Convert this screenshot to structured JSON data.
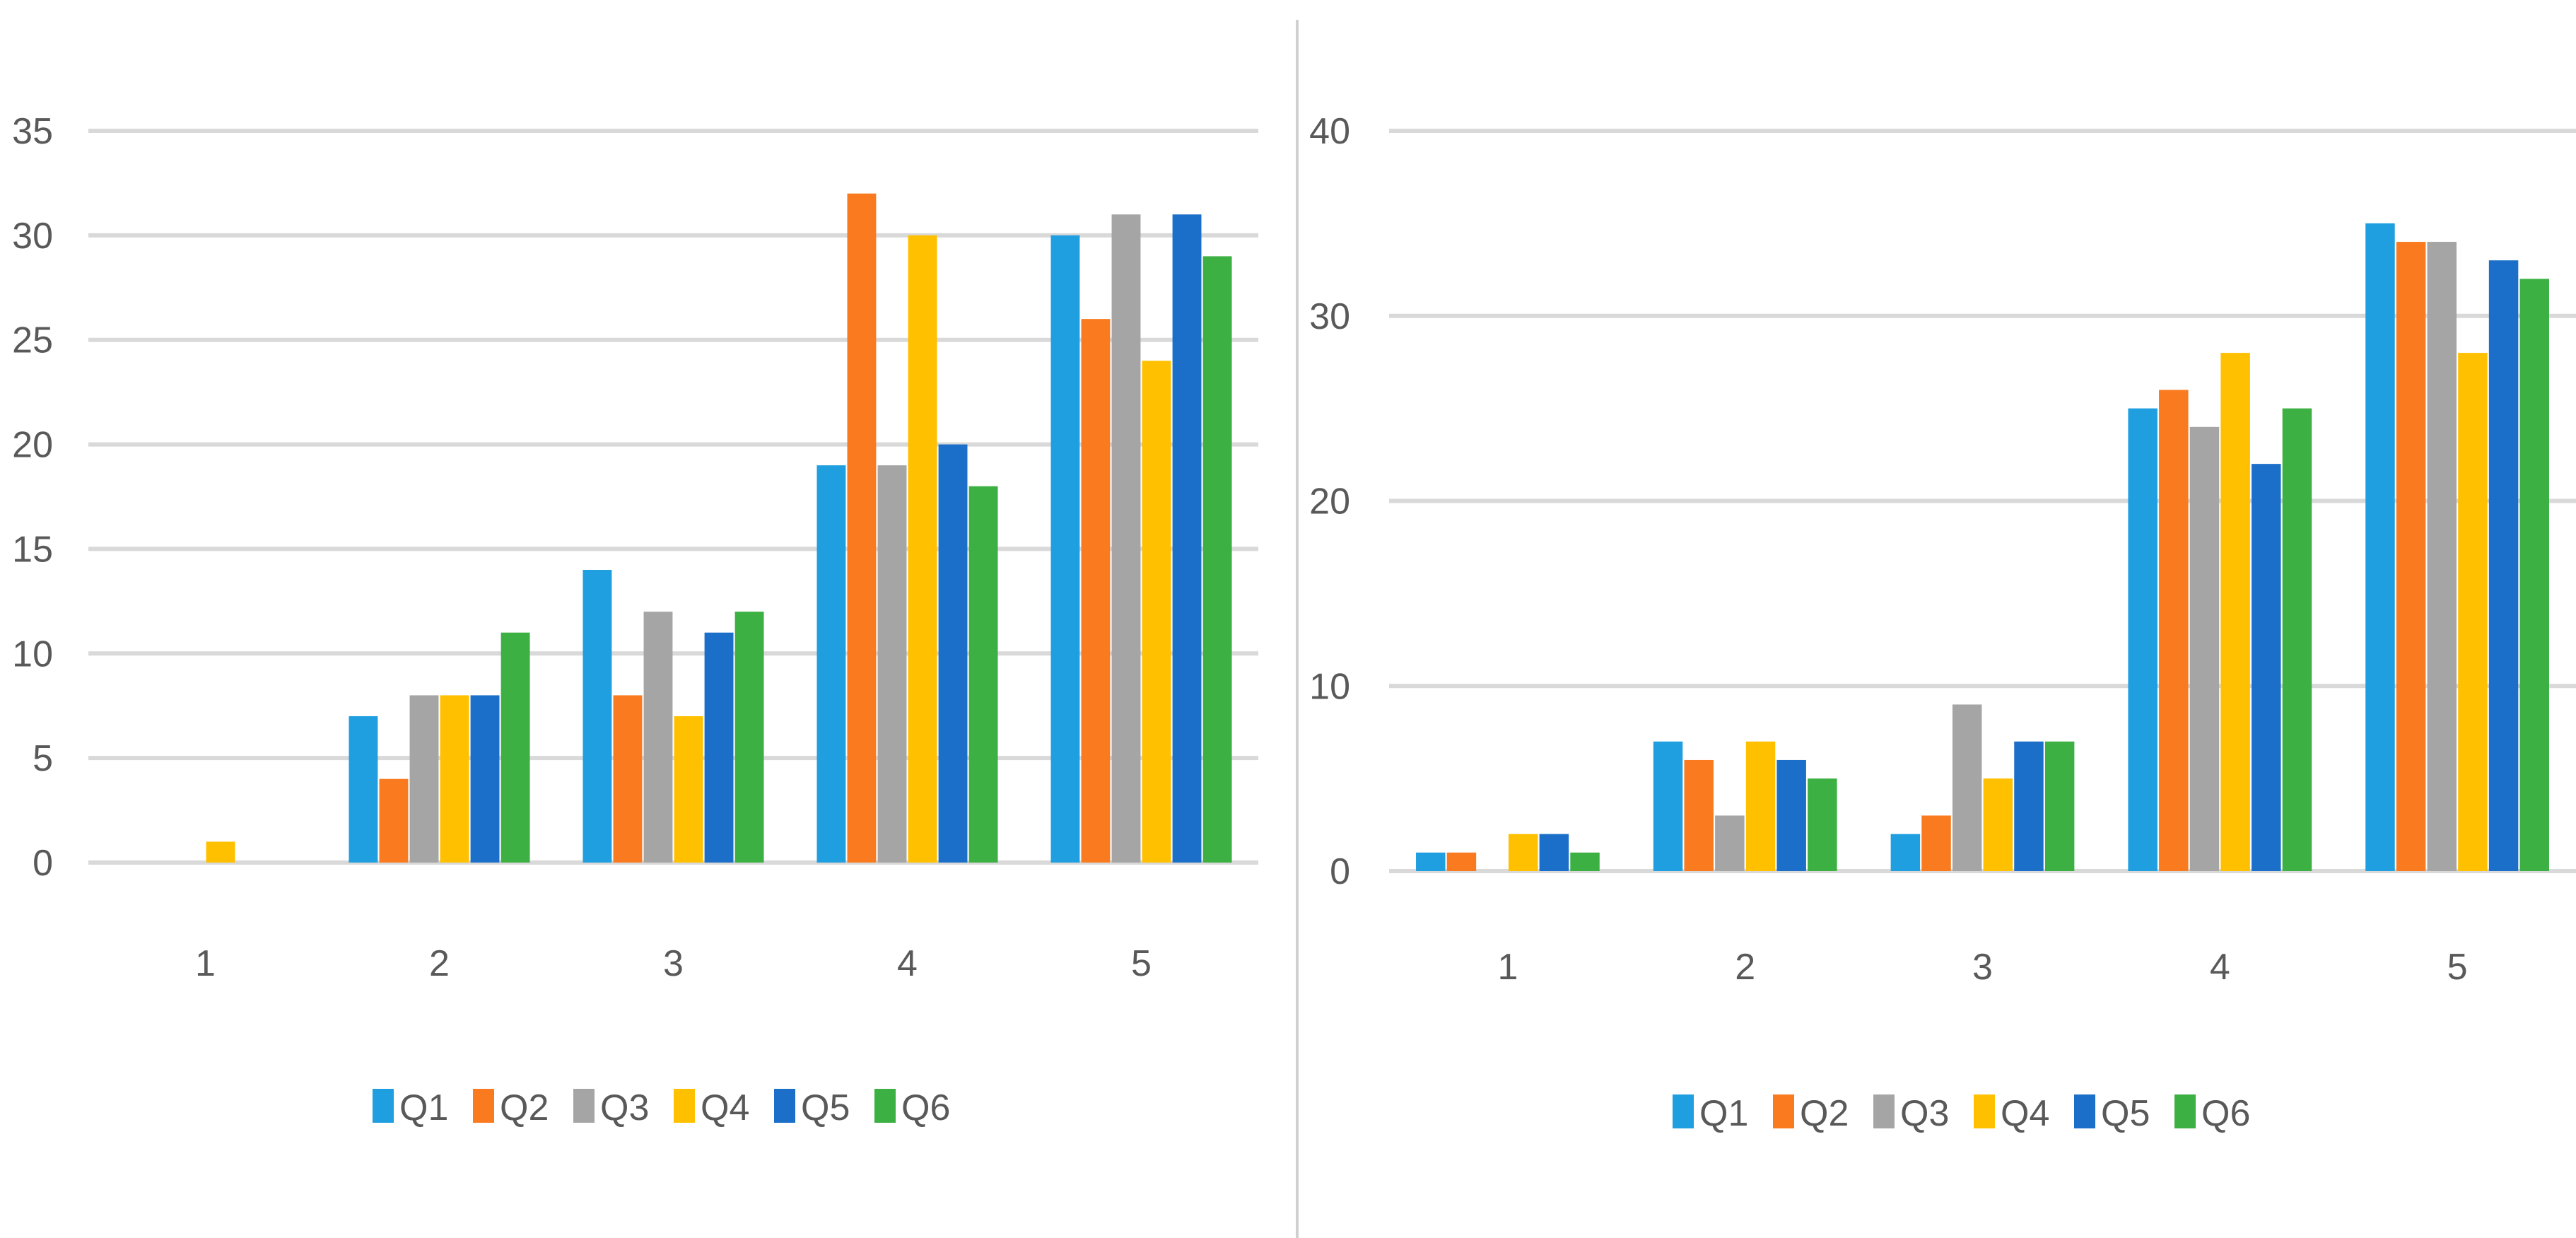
{
  "chart_data": [
    {
      "type": "bar",
      "title": "",
      "xlabel": "",
      "ylabel": "",
      "categories": [
        "1",
        "2",
        "3",
        "4",
        "5"
      ],
      "ylim": [
        0,
        35
      ],
      "yticks": [
        "0",
        "5",
        "10",
        "15",
        "20",
        "25",
        "30",
        "35"
      ],
      "grid": true,
      "legend_position": "bottom",
      "series": [
        {
          "name": "Q1",
          "color": "#1f9fe0",
          "values": [
            0,
            7,
            14,
            19,
            30
          ]
        },
        {
          "name": "Q2",
          "color": "#f97a1f",
          "values": [
            0,
            4,
            8,
            32,
            26
          ]
        },
        {
          "name": "Q3",
          "color": "#a5a5a5",
          "values": [
            0,
            8,
            12,
            19,
            31
          ]
        },
        {
          "name": "Q4",
          "color": "#ffc000",
          "values": [
            1,
            8,
            7,
            30,
            24
          ]
        },
        {
          "name": "Q5",
          "color": "#1b6fc9",
          "values": [
            0,
            8,
            11,
            20,
            31
          ]
        },
        {
          "name": "Q6",
          "color": "#3cb043",
          "values": [
            0,
            11,
            12,
            18,
            29
          ]
        }
      ]
    },
    {
      "type": "bar",
      "title": "",
      "xlabel": "",
      "ylabel": "",
      "categories": [
        "1",
        "2",
        "3",
        "4",
        "5"
      ],
      "ylim": [
        0,
        40
      ],
      "yticks": [
        "0",
        "10",
        "20",
        "30",
        "40"
      ],
      "grid": true,
      "legend_position": "bottom",
      "series": [
        {
          "name": "Q1",
          "color": "#1f9fe0",
          "values": [
            1,
            7,
            2,
            25,
            35
          ]
        },
        {
          "name": "Q2",
          "color": "#f97a1f",
          "values": [
            1,
            6,
            3,
            26,
            34
          ]
        },
        {
          "name": "Q3",
          "color": "#a5a5a5",
          "values": [
            0,
            3,
            9,
            24,
            34
          ]
        },
        {
          "name": "Q4",
          "color": "#ffc000",
          "values": [
            2,
            7,
            5,
            28,
            28
          ]
        },
        {
          "name": "Q5",
          "color": "#1b6fc9",
          "values": [
            2,
            6,
            7,
            22,
            33
          ]
        },
        {
          "name": "Q6",
          "color": "#3cb043",
          "values": [
            1,
            5,
            7,
            25,
            32
          ]
        }
      ]
    }
  ]
}
